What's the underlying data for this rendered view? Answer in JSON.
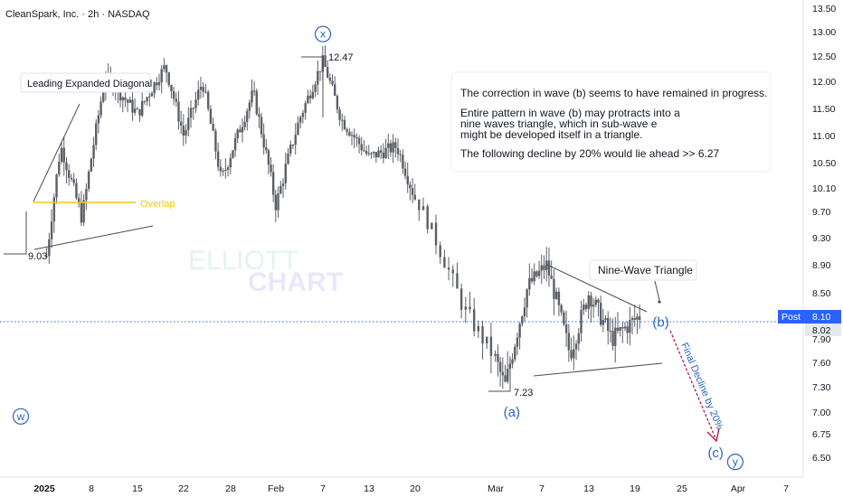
{
  "header": {
    "symbol_title": "CleanSpark, Inc. · 2h · NASDAQ"
  },
  "watermark": {
    "line1": "ELLIOTT",
    "line2": "CHART"
  },
  "colors": {
    "candle": "#5d5f66",
    "wave_label": "#2e63c4",
    "overlap": "#f5c518",
    "arrow": "#b8174a",
    "post_badge": "#2962ff",
    "last_badge": "#e6e8ec"
  },
  "annotations": {
    "leading_diagonal": "Leading Expanded Diagonal",
    "overlap": "Overlap",
    "nine_wave_triangle": "Nine-Wave Triangle",
    "final_decline": "Final Decline by 20%",
    "info_box": [
      "The correction in wave (b) seems to have remained in progress.",
      "Entire pattern in wave (b) may protracts into a",
      "nine waves triangle, which in sub-wave e",
      "might be developed itself in a triangle.",
      "The following decline by 20% would lie ahead >> 6.27"
    ]
  },
  "price_badges": {
    "post_label": "Post",
    "post_value": "8.10",
    "last_value": "8.02"
  },
  "chart_data": {
    "type": "candlestick",
    "y_axis": {
      "range": [
        6.35,
        13.65
      ],
      "ticks": [
        "13.50",
        "13.00",
        "12.50",
        "12.00",
        "11.50",
        "11.00",
        "10.50",
        "10.10",
        "9.70",
        "9.30",
        "8.90",
        "8.50",
        "7.90",
        "7.60",
        "7.30",
        "7.00",
        "6.75",
        "6.50"
      ]
    },
    "x_axis": {
      "ticks": [
        {
          "label": "2025",
          "bold": true,
          "x": 0
        },
        {
          "label": "8",
          "x": 1
        },
        {
          "label": "15",
          "x": 2
        },
        {
          "label": "22",
          "x": 3
        },
        {
          "label": "28",
          "x": 4
        },
        {
          "label": "Feb",
          "x": 5
        },
        {
          "label": "7",
          "x": 6
        },
        {
          "label": "13",
          "x": 7
        },
        {
          "label": "20",
          "x": 8
        },
        {
          "label": "Mar",
          "x": 9
        },
        {
          "label": "7",
          "x": 10
        },
        {
          "label": "13",
          "x": 11
        },
        {
          "label": "19",
          "x": 12
        },
        {
          "label": "25",
          "x": 13
        },
        {
          "label": "Apr",
          "x": 14
        },
        {
          "label": "7",
          "x": 15
        }
      ]
    },
    "wave_labels": [
      {
        "text": "w",
        "circled": true,
        "date_index": 0.0,
        "price": 6.95
      },
      {
        "text": "x",
        "circled": true,
        "date_index": 6.0,
        "price": 12.95
      },
      {
        "text": "(a)",
        "circled": false,
        "date_index": 9.35,
        "price": 7.0
      },
      {
        "text": "(b)",
        "circled": false,
        "date_index": 12.55,
        "price": 8.12
      },
      {
        "text": "(c)",
        "circled": false,
        "date_index": 13.6,
        "price": 6.55
      },
      {
        "text": "y",
        "circled": true,
        "date_index": 13.95,
        "price": 6.45
      }
    ],
    "price_labels": [
      {
        "text": "9.03",
        "price": 9.03
      },
      {
        "text": "12.47",
        "price": 12.47
      },
      {
        "text": "7.23",
        "price": 7.23
      }
    ],
    "key_points": [
      {
        "date_index": 0.05,
        "price": 9.03
      },
      {
        "date_index": 0.35,
        "price": 10.8
      },
      {
        "date_index": 0.8,
        "price": 9.6
      },
      {
        "date_index": 1.3,
        "price": 12.1
      },
      {
        "date_index": 2.0,
        "price": 11.4
      },
      {
        "date_index": 2.6,
        "price": 12.3
      },
      {
        "date_index": 3.0,
        "price": 11.0
      },
      {
        "date_index": 3.4,
        "price": 12.0
      },
      {
        "date_index": 3.8,
        "price": 10.2
      },
      {
        "date_index": 4.5,
        "price": 11.8
      },
      {
        "date_index": 5.0,
        "price": 9.8
      },
      {
        "date_index": 5.5,
        "price": 11.3
      },
      {
        "date_index": 6.0,
        "price": 12.4
      },
      {
        "date_index": 6.4,
        "price": 11.3
      },
      {
        "date_index": 7.0,
        "price": 10.6
      },
      {
        "date_index": 7.6,
        "price": 10.8
      },
      {
        "date_index": 8.1,
        "price": 9.7
      },
      {
        "date_index": 8.6,
        "price": 8.3
      },
      {
        "date_index": 9.2,
        "price": 7.3
      },
      {
        "date_index": 9.7,
        "price": 8.6
      },
      {
        "date_index": 10.1,
        "price": 8.9
      },
      {
        "date_index": 10.6,
        "price": 7.7
      },
      {
        "date_index": 11.0,
        "price": 8.5
      },
      {
        "date_index": 11.5,
        "price": 7.9
      },
      {
        "date_index": 12.1,
        "price": 8.2
      }
    ]
  }
}
